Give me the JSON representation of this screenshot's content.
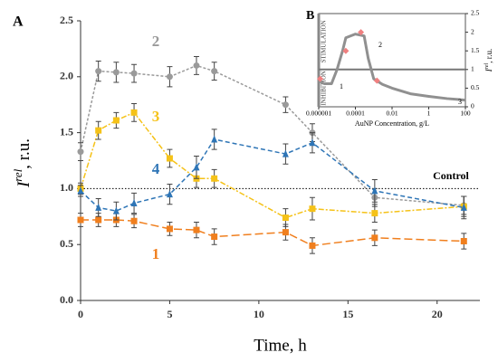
{
  "chart_data": [
    {
      "type": "line",
      "panel": "A",
      "xlabel": "Time, h",
      "ylabel": "I",
      "ylabel_sup": "rel",
      "ylabel_rest": ", r.u.",
      "xlim": [
        0,
        22.4
      ],
      "ylim": [
        0,
        2.5
      ],
      "xticks": [
        0,
        5,
        10,
        15,
        20
      ],
      "yticks": [
        {
          "value": 0,
          "label": "0.0"
        },
        0.5,
        {
          "value": 1,
          "label": "1.0"
        },
        1.5,
        {
          "value": 2,
          "label": "2.0"
        },
        2.5
      ],
      "reference": {
        "value": 1,
        "label": "Control"
      },
      "x": [
        0,
        1,
        2,
        3,
        5,
        6.5,
        7.5,
        11.5,
        13,
        16.5,
        21.5
      ],
      "series": [
        {
          "name": "1",
          "color": "#f07f1e",
          "marker": "square",
          "dash": "9,4",
          "values": [
            0.72,
            0.72,
            0.72,
            0.71,
            0.64,
            0.63,
            0.57,
            0.61,
            0.49,
            0.56,
            0.53
          ],
          "errors": [
            0.06,
            0.06,
            0.06,
            0.06,
            0.06,
            0.07,
            0.07,
            0.07,
            0.07,
            0.07,
            0.07
          ]
        },
        {
          "name": "2",
          "color": "#9a9a9a",
          "marker": "circle",
          "dash": "3,2",
          "values": [
            1.33,
            2.05,
            2.04,
            2.03,
            2.0,
            2.1,
            2.05,
            1.75,
            1.5,
            0.92,
            0.85
          ],
          "errors": [
            0.08,
            0.09,
            0.09,
            0.08,
            0.09,
            0.08,
            0.08,
            0.07,
            0.08,
            0.08,
            0.08
          ]
        },
        {
          "name": "3",
          "color": "#f5c218",
          "marker": "square",
          "dash": "6,2,2,2",
          "values": [
            1.0,
            1.52,
            1.61,
            1.68,
            1.27,
            1.09,
            1.09,
            0.74,
            0.82,
            0.78,
            0.84
          ],
          "errors": [
            0.05,
            0.08,
            0.07,
            0.08,
            0.08,
            0.08,
            0.08,
            0.08,
            0.1,
            0.08,
            0.09
          ]
        },
        {
          "name": "4",
          "color": "#2e75b6",
          "marker": "triangle",
          "dash": "5,3",
          "values": [
            0.98,
            0.83,
            0.8,
            0.87,
            0.95,
            1.19,
            1.44,
            1.31,
            1.41,
            0.98,
            0.83
          ],
          "errors": [
            0.05,
            0.08,
            0.08,
            0.09,
            0.09,
            0.1,
            0.09,
            0.09,
            0.09,
            0.1,
            0.1
          ]
        }
      ]
    },
    {
      "type": "line",
      "panel": "B",
      "xscale": "log",
      "xlabel": "AuNP Concentration, g/L",
      "ylabel": "I",
      "ylabel_sup": "rel",
      "ylabel_rest": ", r.u.",
      "xlim": [
        1e-06,
        100
      ],
      "y2lim": [
        0,
        2.5
      ],
      "xticks": [
        {
          "value": 1e-06,
          "label": "0.000001"
        },
        0.0001,
        0.01,
        1,
        100
      ],
      "y2ticks": [
        0,
        0.5,
        1,
        1.5,
        2,
        2.5
      ],
      "regions": [
        "STIMULATION",
        "INHIBITION"
      ],
      "annotations": [
        "1",
        "2",
        "3"
      ],
      "reference": 1,
      "series": [
        {
          "color": "#909090",
          "axis": "y2",
          "x": [
            1e-06,
            2e-06,
            5e-06,
            1e-05,
            2e-05,
            3e-05,
            0.0001,
            0.0003,
            0.0005,
            0.001,
            0.003,
            0.01,
            0.1,
            1,
            10,
            100
          ],
          "values": [
            0.7,
            0.62,
            0.62,
            1.0,
            1.5,
            1.85,
            1.95,
            1.9,
            1.3,
            0.75,
            0.6,
            0.5,
            0.35,
            0.28,
            0.22,
            0.18
          ]
        },
        {
          "color": "#f08080",
          "axis": "y2",
          "marker": "diamond",
          "x": [
            1.2e-06,
            3e-05,
            0.0002,
            0.0015
          ],
          "values": [
            0.75,
            1.5,
            2.0,
            0.7
          ]
        }
      ]
    }
  ]
}
